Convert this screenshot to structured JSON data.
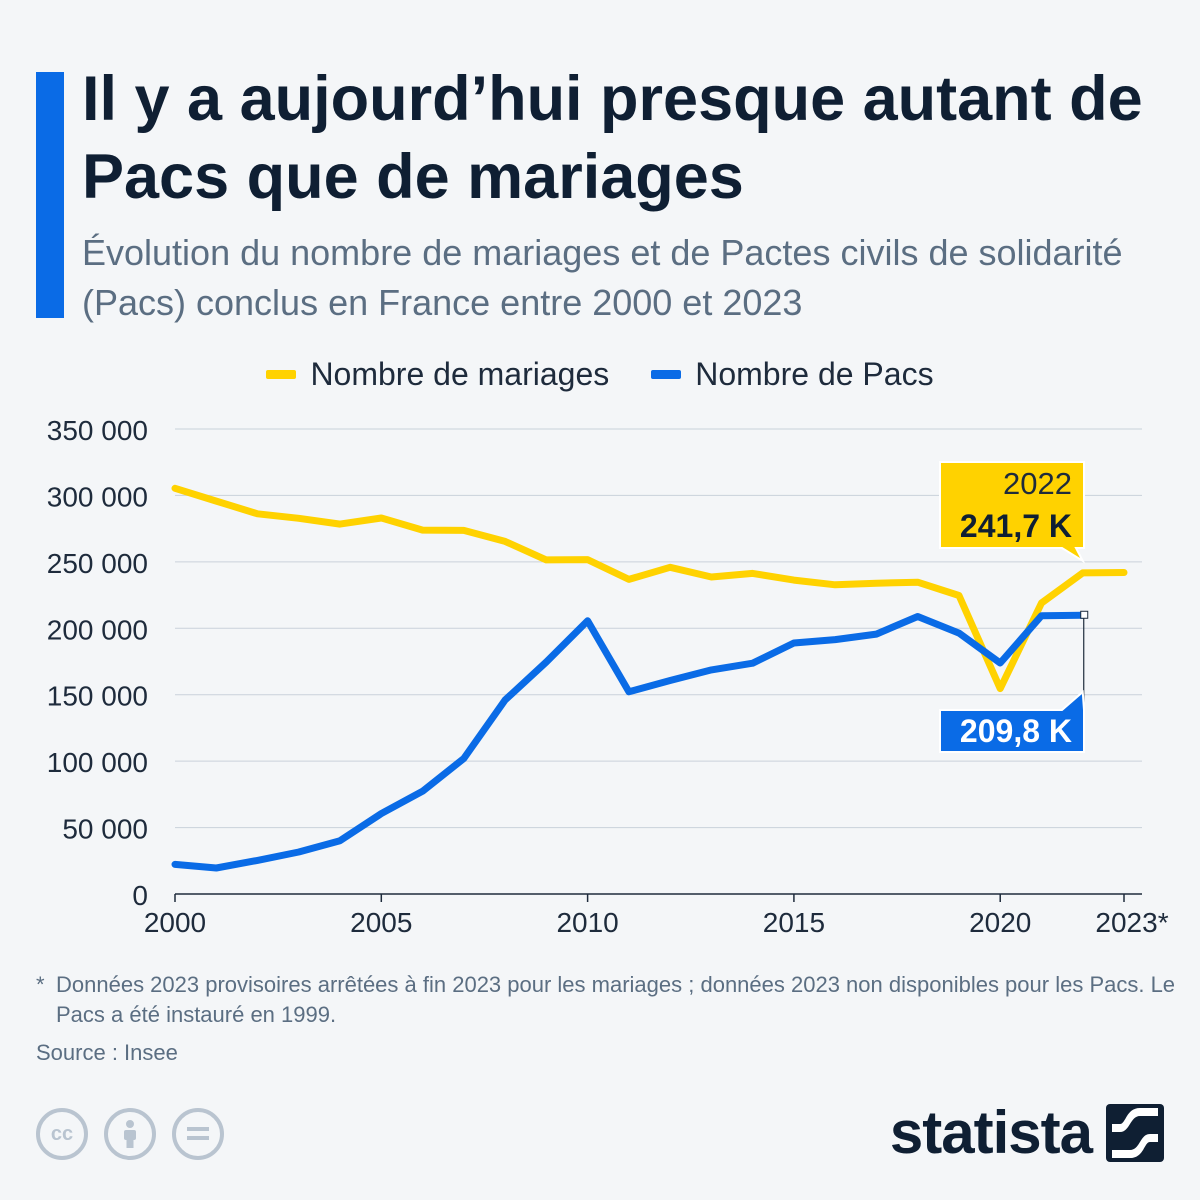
{
  "header": {
    "title": "Il y a aujourd’hui presque autant de Pacs que de mariages",
    "subtitle": "Évolution du nombre de mariages et de Pactes civils de solidarité (Pacs) conclus en France entre 2000 et 2023"
  },
  "colors": {
    "accent": "#0a6be6",
    "mariages": "#ffd200",
    "pacs": "#0a6be6",
    "grid": "#c9d1da",
    "text": "#1e2b3c"
  },
  "chart_data": {
    "type": "line",
    "x": [
      2000,
      2001,
      2002,
      2003,
      2004,
      2005,
      2006,
      2007,
      2008,
      2009,
      2010,
      2011,
      2012,
      2013,
      2014,
      2015,
      2016,
      2017,
      2018,
      2019,
      2020,
      2021,
      2022,
      2023
    ],
    "series": [
      {
        "name": "Nombre de mariages",
        "values": [
          305400,
          295700,
          286200,
          282800,
          278400,
          283000,
          273900,
          273700,
          265400,
          251500,
          251700,
          236800,
          245900,
          238600,
          241300,
          236300,
          232700,
          233900,
          234700,
          224700,
          154600,
          219000,
          241700,
          242000
        ]
      },
      {
        "name": "Nombre de Pacs",
        "values": [
          22300,
          19600,
          25300,
          31600,
          40100,
          60500,
          77400,
          102000,
          146000,
          174600,
          205600,
          152200,
          160700,
          168700,
          173700,
          188900,
          191500,
          195600,
          208900,
          196400,
          173900,
          209500,
          209800,
          null
        ]
      }
    ],
    "y_ticks": [
      "350 000",
      "300 000",
      "250 000",
      "200 000",
      "150 000",
      "100 000",
      "50 000",
      "0"
    ],
    "y_tick_values": [
      350000,
      300000,
      250000,
      200000,
      150000,
      100000,
      50000,
      0
    ],
    "x_ticks": [
      {
        "value": 2000,
        "label": "2000"
      },
      {
        "value": 2005,
        "label": "2005"
      },
      {
        "value": 2010,
        "label": "2010"
      },
      {
        "value": 2015,
        "label": "2015"
      },
      {
        "value": 2020,
        "label": "2020"
      },
      {
        "value": 2023,
        "label": "2023*"
      }
    ],
    "ylim": [
      0,
      350000
    ],
    "xlim": [
      2000,
      2023
    ],
    "grid": true,
    "legend": "top-center",
    "annotations": {
      "mariages": {
        "x": 2022,
        "year_label": "2022",
        "value_label": "241,7 K"
      },
      "pacs": {
        "x": 2022,
        "value_label": "209,8 K"
      }
    }
  },
  "footer": {
    "footnote_marker": "*",
    "footnote": "Données 2023 provisoires arrêtées à fin 2023 pour les mariages ; données 2023 non disponibles pour les Pacs. Le Pacs a été instauré en 1999.",
    "source": "Source : Insee",
    "brand": "statista",
    "license_icons": [
      "cc-icon",
      "attribution-icon",
      "no-derivatives-icon"
    ]
  }
}
